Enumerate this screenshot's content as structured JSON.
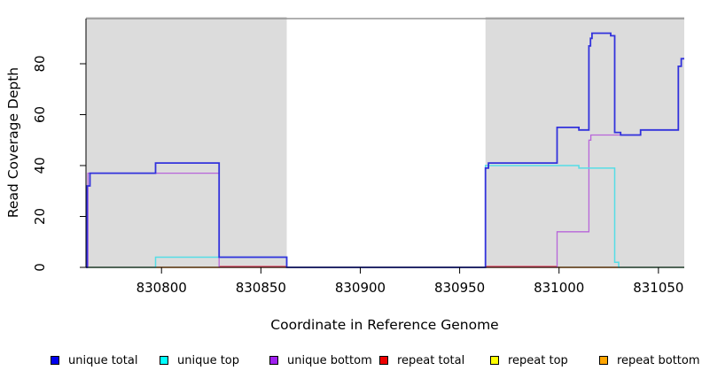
{
  "chart_data": {
    "type": "line",
    "subtype": "step-coverage",
    "title": "",
    "xlabel": "Coordinate in Reference Genome",
    "ylabel": "Read Coverage Depth",
    "x_ticks": [
      830800,
      830850,
      830900,
      830950,
      831000,
      831050
    ],
    "x_tick_labels": [
      "830800",
      "830850",
      "830900",
      "830950",
      "831000",
      "831050"
    ],
    "y_ticks": [
      0,
      20,
      40,
      60,
      80
    ],
    "y_tick_labels": [
      "0",
      "20",
      "40",
      "60",
      "80"
    ],
    "xlim": [
      830762,
      831063
    ],
    "ylim": [
      0,
      97.7
    ],
    "grid": false,
    "background_color": "#ffffff",
    "shaded_regions": [
      {
        "name": "left-repeat-region",
        "x0": 830762,
        "x1": 830863,
        "color": "#dcdcdc"
      },
      {
        "name": "right-repeat-region",
        "x0": 830963,
        "x1": 831063,
        "color": "#dcdcdc"
      }
    ],
    "box_top_color": "#808080",
    "axis_color": "#000000",
    "series_draw_order": [
      "repeat top",
      "repeat total",
      "repeat bottom",
      "unique bottom",
      "unique top",
      "unique total"
    ],
    "series": [
      {
        "name": "unique total",
        "color": "#3232dc",
        "legend_color": "#0000ee",
        "steps": [
          [
            830762,
            0
          ],
          [
            830762.6,
            32
          ],
          [
            830764,
            37
          ],
          [
            830797,
            41
          ],
          [
            830829,
            4
          ],
          [
            830863,
            0
          ],
          [
            830963,
            39
          ],
          [
            830964.5,
            41
          ],
          [
            830999,
            55
          ],
          [
            831010,
            54
          ],
          [
            831015,
            87
          ],
          [
            831015.8,
            90
          ],
          [
            831016.6,
            92
          ],
          [
            831026,
            91
          ],
          [
            831028,
            53
          ],
          [
            831031,
            52
          ],
          [
            831041,
            54
          ],
          [
            831060,
            79
          ],
          [
            831061.5,
            82
          ]
        ]
      },
      {
        "name": "unique top",
        "color": "#55dde6",
        "legend_color": "#00ffff",
        "steps": [
          [
            830762,
            0
          ],
          [
            830797,
            4
          ],
          [
            830863,
            0
          ],
          [
            830963,
            40
          ],
          [
            831010,
            39
          ],
          [
            831028,
            2
          ],
          [
            831030,
            0
          ]
        ]
      },
      {
        "name": "unique bottom",
        "color": "#b765d9",
        "legend_color": "#a020f0",
        "steps": [
          [
            830762,
            0
          ],
          [
            830763,
            37
          ],
          [
            830829,
            0
          ],
          [
            830999,
            14
          ],
          [
            831015,
            50
          ],
          [
            831016,
            52
          ],
          [
            831041,
            54
          ],
          [
            831060,
            79
          ],
          [
            831061.5,
            82
          ]
        ]
      },
      {
        "name": "repeat total",
        "color": "#e03050",
        "legend_color": "#ee0000",
        "steps": [
          [
            830762,
            0
          ],
          [
            830829,
            0.35
          ],
          [
            830863,
            0
          ],
          [
            830963,
            0.35
          ],
          [
            830999,
            0
          ]
        ]
      },
      {
        "name": "repeat top",
        "color": "#eeee44",
        "legend_color": "#ffff00",
        "steps": [
          [
            830762,
            0
          ]
        ]
      },
      {
        "name": "repeat bottom",
        "color": "#ffa500",
        "legend_color": "#ffa500",
        "steps": [
          [
            830762,
            0
          ]
        ]
      }
    ],
    "legend": {
      "position": "bottom",
      "labels": [
        "unique total",
        "unique top",
        "unique bottom",
        "repeat total",
        "repeat top",
        "repeat bottom"
      ]
    }
  }
}
